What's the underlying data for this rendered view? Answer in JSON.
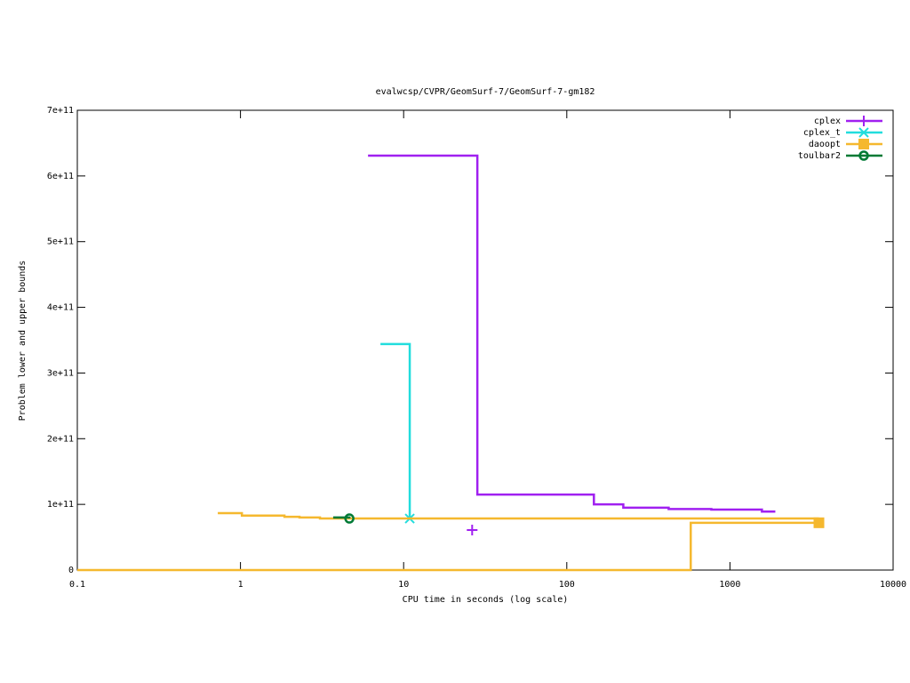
{
  "chart_data": {
    "type": "step",
    "title": "evalwcsp/CVPR/GeomSurf-7/GeomSurf-7-gm182",
    "xlabel": "CPU time in seconds (log scale)",
    "ylabel": "Problem lower and upper bounds",
    "xscale": "log",
    "xlim": [
      0.1,
      10000
    ],
    "xticks": [
      0.1,
      1,
      10,
      100,
      1000,
      10000
    ],
    "ylim": [
      0,
      700000000000
    ],
    "yticks": [
      0,
      {
        "value": 100000000000,
        "label": "1e+11"
      },
      {
        "value": 200000000000,
        "label": "2e+11"
      },
      {
        "value": 300000000000,
        "label": "3e+11"
      },
      {
        "value": 400000000000,
        "label": "4e+11"
      },
      {
        "value": 500000000000,
        "label": "5e+11"
      },
      {
        "value": 600000000000,
        "label": "6e+11"
      },
      {
        "value": 700000000000,
        "label": "7e+11"
      }
    ],
    "legend": "top-right",
    "series": [
      {
        "name": "cplex",
        "color": "#a020f0",
        "marker": "plus",
        "x": [
          6.05,
          28.3,
          146.6,
          222,
          421,
          769,
          1570,
          1897,
          null,
          26,
          26.3
        ],
        "values": [
          631000000000,
          115000000000,
          100000000000,
          95000000000,
          93000000000,
          92000000000,
          89000000000,
          89000000000,
          null,
          61000000000,
          61000000000
        ]
      },
      {
        "name": "cplex_t",
        "color": "#22dddd",
        "marker": "star",
        "x": [
          7.21,
          10.9
        ],
        "values": [
          344000000000,
          78500000000
        ]
      },
      {
        "name": "daoopt",
        "color": "#f5b82e",
        "marker": "square",
        "x": [
          0.726,
          1.02,
          1.86,
          2.3,
          3.07,
          3510,
          null,
          0.1,
          575,
          3510
        ],
        "values": [
          86600000000,
          83000000000,
          81000000000,
          80000000000,
          78500000000,
          78500000000,
          null,
          0,
          72000000000,
          72000000000
        ]
      },
      {
        "name": "toulbar2",
        "color": "#007a35",
        "marker": "circle",
        "x": [
          3.7,
          4.65
        ],
        "values": [
          80000000000,
          78500000000
        ]
      }
    ]
  }
}
